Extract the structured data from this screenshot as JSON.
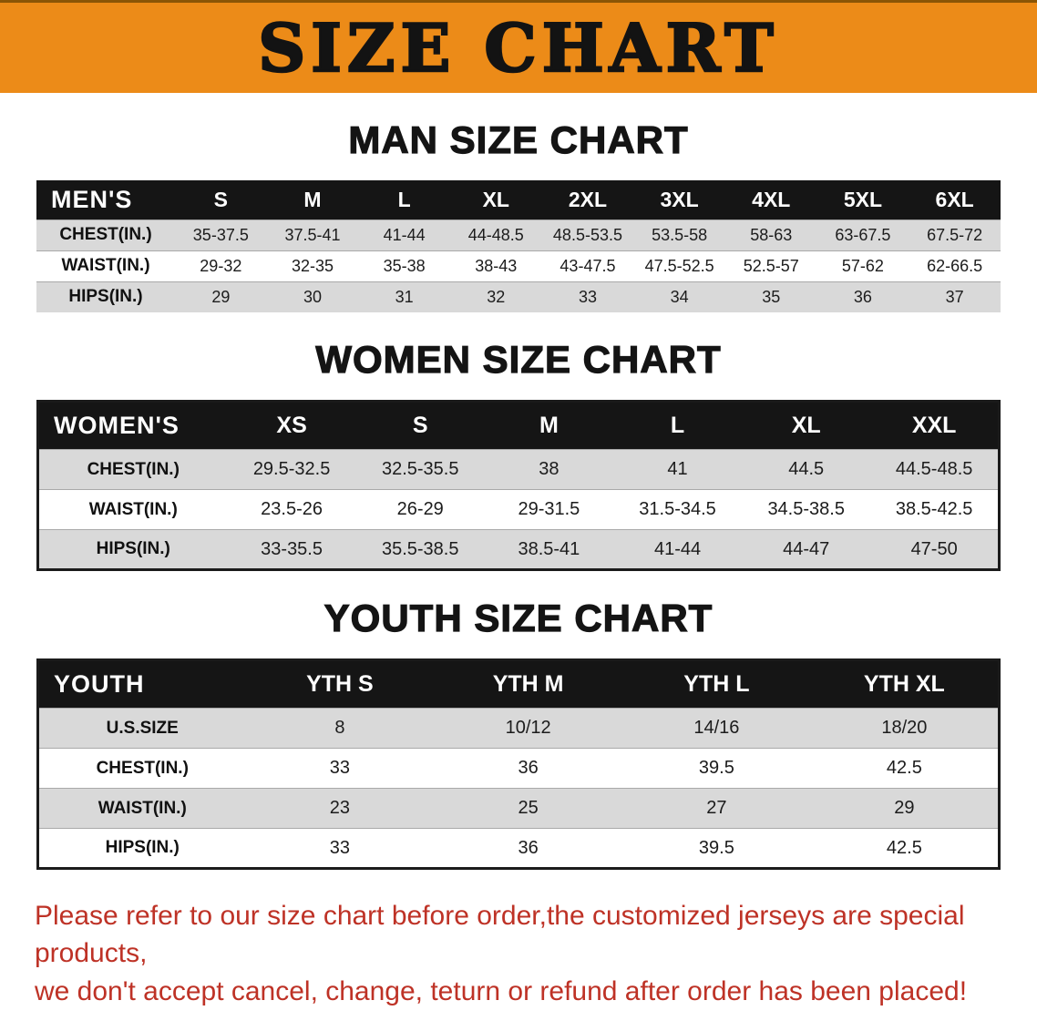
{
  "banner": {
    "title": "SIZE CHART"
  },
  "colors": {
    "banner_bg": "#EC8B18",
    "table_header_bg": "#151515",
    "row_alt_gray": "#D9D9D9",
    "disclaimer_red": "#BE3226"
  },
  "sections": [
    {
      "heading": "MAN SIZE CHART",
      "table": {
        "header": [
          "MEN'S",
          "S",
          "M",
          "L",
          "XL",
          "2XL",
          "3XL",
          "4XL",
          "5XL",
          "6XL"
        ],
        "rows": [
          [
            "CHEST(IN.)",
            "35-37.5",
            "37.5-41",
            "41-44",
            "44-48.5",
            "48.5-53.5",
            "53.5-58",
            "58-63",
            "63-67.5",
            "67.5-72"
          ],
          [
            "WAIST(IN.)",
            "29-32",
            "32-35",
            "35-38",
            "38-43",
            "43-47.5",
            "47.5-52.5",
            "52.5-57",
            "57-62",
            "62-66.5"
          ],
          [
            "HIPS(IN.)",
            "29",
            "30",
            "31",
            "32",
            "33",
            "34",
            "35",
            "36",
            "37"
          ]
        ]
      }
    },
    {
      "heading": "WOMEN SIZE CHART",
      "table": {
        "header": [
          "WOMEN'S",
          "XS",
          "S",
          "M",
          "L",
          "XL",
          "XXL"
        ],
        "rows": [
          [
            "CHEST(IN.)",
            "29.5-32.5",
            "32.5-35.5",
            "38",
            "41",
            "44.5",
            "44.5-48.5"
          ],
          [
            "WAIST(IN.)",
            "23.5-26",
            "26-29",
            "29-31.5",
            "31.5-34.5",
            "34.5-38.5",
            "38.5-42.5"
          ],
          [
            "HIPS(IN.)",
            "33-35.5",
            "35.5-38.5",
            "38.5-41",
            "41-44",
            "44-47",
            "47-50"
          ]
        ]
      }
    },
    {
      "heading": "YOUTH SIZE CHART",
      "table": {
        "header": [
          "YOUTH",
          "YTH S",
          "YTH M",
          "YTH L",
          "YTH XL"
        ],
        "rows": [
          [
            "U.S.SIZE",
            "8",
            "10/12",
            "14/16",
            "18/20"
          ],
          [
            "CHEST(IN.)",
            "33",
            "36",
            "39.5",
            "42.5"
          ],
          [
            "WAIST(IN.)",
            "23",
            "25",
            "27",
            "29"
          ],
          [
            "HIPS(IN.)",
            "33",
            "36",
            "39.5",
            "42.5"
          ]
        ]
      }
    }
  ],
  "disclaimer": {
    "line1": "Please refer to our size chart before order,the customized jerseys are special products,",
    "line2": "we don't accept cancel, change, teturn or refund after order has been placed!"
  }
}
